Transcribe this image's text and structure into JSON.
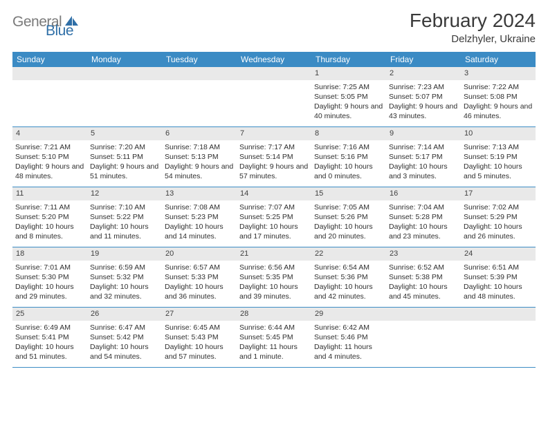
{
  "logo": {
    "text1": "General",
    "text2": "Blue"
  },
  "title": "February 2024",
  "location": "Delzhyler, Ukraine",
  "weekdays": [
    "Sunday",
    "Monday",
    "Tuesday",
    "Wednesday",
    "Thursday",
    "Friday",
    "Saturday"
  ],
  "colors": {
    "header_blue": "#3b8bc4",
    "daybar_gray": "#e9e9e9",
    "text_dark": "#2e2e2e",
    "logo_gray": "#7a7a7a",
    "logo_blue": "#2f6fa7"
  },
  "weeks": [
    [
      {
        "blank": true
      },
      {
        "blank": true
      },
      {
        "blank": true
      },
      {
        "blank": true
      },
      {
        "num": "1",
        "sunrise": "7:25 AM",
        "sunset": "5:05 PM",
        "daylight": "9 hours and 40 minutes."
      },
      {
        "num": "2",
        "sunrise": "7:23 AM",
        "sunset": "5:07 PM",
        "daylight": "9 hours and 43 minutes."
      },
      {
        "num": "3",
        "sunrise": "7:22 AM",
        "sunset": "5:08 PM",
        "daylight": "9 hours and 46 minutes."
      }
    ],
    [
      {
        "num": "4",
        "sunrise": "7:21 AM",
        "sunset": "5:10 PM",
        "daylight": "9 hours and 48 minutes."
      },
      {
        "num": "5",
        "sunrise": "7:20 AM",
        "sunset": "5:11 PM",
        "daylight": "9 hours and 51 minutes."
      },
      {
        "num": "6",
        "sunrise": "7:18 AM",
        "sunset": "5:13 PM",
        "daylight": "9 hours and 54 minutes."
      },
      {
        "num": "7",
        "sunrise": "7:17 AM",
        "sunset": "5:14 PM",
        "daylight": "9 hours and 57 minutes."
      },
      {
        "num": "8",
        "sunrise": "7:16 AM",
        "sunset": "5:16 PM",
        "daylight": "10 hours and 0 minutes."
      },
      {
        "num": "9",
        "sunrise": "7:14 AM",
        "sunset": "5:17 PM",
        "daylight": "10 hours and 3 minutes."
      },
      {
        "num": "10",
        "sunrise": "7:13 AM",
        "sunset": "5:19 PM",
        "daylight": "10 hours and 5 minutes."
      }
    ],
    [
      {
        "num": "11",
        "sunrise": "7:11 AM",
        "sunset": "5:20 PM",
        "daylight": "10 hours and 8 minutes."
      },
      {
        "num": "12",
        "sunrise": "7:10 AM",
        "sunset": "5:22 PM",
        "daylight": "10 hours and 11 minutes."
      },
      {
        "num": "13",
        "sunrise": "7:08 AM",
        "sunset": "5:23 PM",
        "daylight": "10 hours and 14 minutes."
      },
      {
        "num": "14",
        "sunrise": "7:07 AM",
        "sunset": "5:25 PM",
        "daylight": "10 hours and 17 minutes."
      },
      {
        "num": "15",
        "sunrise": "7:05 AM",
        "sunset": "5:26 PM",
        "daylight": "10 hours and 20 minutes."
      },
      {
        "num": "16",
        "sunrise": "7:04 AM",
        "sunset": "5:28 PM",
        "daylight": "10 hours and 23 minutes."
      },
      {
        "num": "17",
        "sunrise": "7:02 AM",
        "sunset": "5:29 PM",
        "daylight": "10 hours and 26 minutes."
      }
    ],
    [
      {
        "num": "18",
        "sunrise": "7:01 AM",
        "sunset": "5:30 PM",
        "daylight": "10 hours and 29 minutes."
      },
      {
        "num": "19",
        "sunrise": "6:59 AM",
        "sunset": "5:32 PM",
        "daylight": "10 hours and 32 minutes."
      },
      {
        "num": "20",
        "sunrise": "6:57 AM",
        "sunset": "5:33 PM",
        "daylight": "10 hours and 36 minutes."
      },
      {
        "num": "21",
        "sunrise": "6:56 AM",
        "sunset": "5:35 PM",
        "daylight": "10 hours and 39 minutes."
      },
      {
        "num": "22",
        "sunrise": "6:54 AM",
        "sunset": "5:36 PM",
        "daylight": "10 hours and 42 minutes."
      },
      {
        "num": "23",
        "sunrise": "6:52 AM",
        "sunset": "5:38 PM",
        "daylight": "10 hours and 45 minutes."
      },
      {
        "num": "24",
        "sunrise": "6:51 AM",
        "sunset": "5:39 PM",
        "daylight": "10 hours and 48 minutes."
      }
    ],
    [
      {
        "num": "25",
        "sunrise": "6:49 AM",
        "sunset": "5:41 PM",
        "daylight": "10 hours and 51 minutes."
      },
      {
        "num": "26",
        "sunrise": "6:47 AM",
        "sunset": "5:42 PM",
        "daylight": "10 hours and 54 minutes."
      },
      {
        "num": "27",
        "sunrise": "6:45 AM",
        "sunset": "5:43 PM",
        "daylight": "10 hours and 57 minutes."
      },
      {
        "num": "28",
        "sunrise": "6:44 AM",
        "sunset": "5:45 PM",
        "daylight": "11 hours and 1 minute."
      },
      {
        "num": "29",
        "sunrise": "6:42 AM",
        "sunset": "5:46 PM",
        "daylight": "11 hours and 4 minutes."
      },
      {
        "blank": true
      },
      {
        "blank": true
      }
    ]
  ]
}
